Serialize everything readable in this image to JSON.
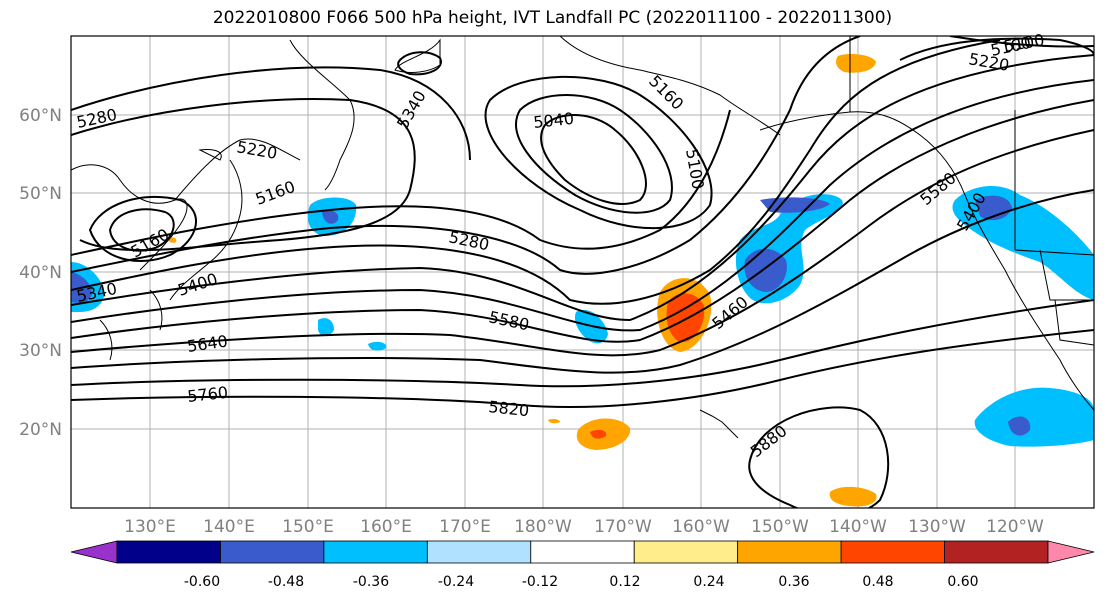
{
  "title": "2022010800 F066 500 hPa height, IVT Landfall PC (2022011100 - 2022011300)",
  "lon_labels": [
    "130°E",
    "140°E",
    "150°E",
    "160°E",
    "170°E",
    "180°W",
    "170°W",
    "160°W",
    "150°W",
    "140°W",
    "130°W",
    "120°W"
  ],
  "lat_labels": [
    "60°N",
    "50°N",
    "40°N",
    "30°N",
    "20°N"
  ],
  "contour_labels": [
    "5280",
    "5220",
    "5160",
    "5160",
    "5340",
    "5400",
    "5640",
    "5760",
    "5820",
    "5580",
    "5460",
    "5280",
    "5040",
    "5160",
    "5100",
    "5220",
    "5160",
    "5100",
    "5580",
    "5400",
    "5880",
    "5340"
  ],
  "colorbar": {
    "colors": [
      "#9932CC",
      "#00008B",
      "#3A5BCB",
      "#00BFFF",
      "#B0E2FF",
      "#FFFFFF",
      "#FFEC8B",
      "#FFA500",
      "#FF4500",
      "#B22222",
      "#FF88AA"
    ],
    "tick_labels": [
      "-0.60",
      "-0.48",
      "-0.36",
      "-0.24",
      "-0.12",
      "0.12",
      "0.24",
      "0.36",
      "0.48",
      "0.60"
    ]
  },
  "colors": {
    "grid": "#b0b0b0",
    "contour": "#000000",
    "coast": "#000000",
    "tick_label": "#808080"
  }
}
